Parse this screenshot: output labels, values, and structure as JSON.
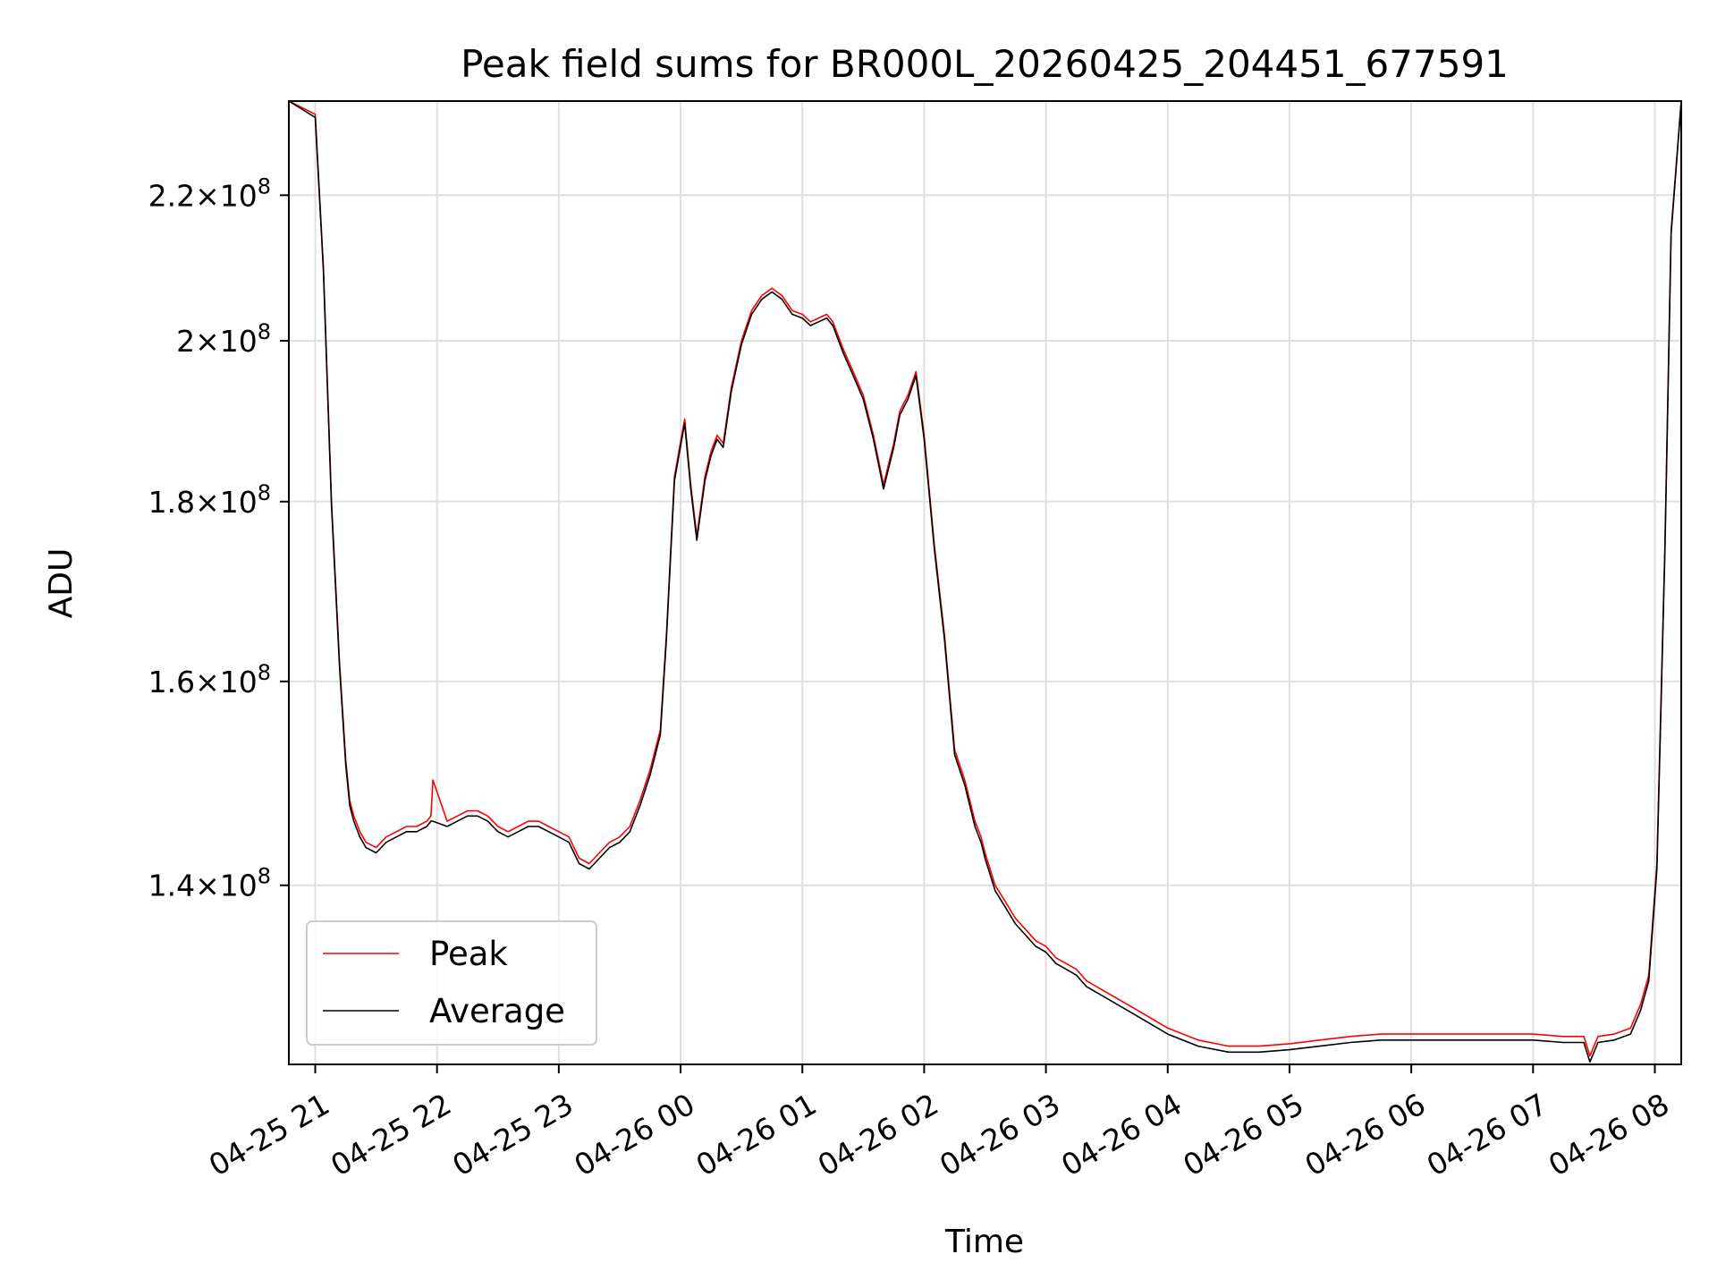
{
  "chart_data": {
    "type": "line",
    "title": "Peak field sums for BR000L_20260425_204451_677591",
    "xlabel": "Time",
    "ylabel": "ADU",
    "y_scale": "log",
    "ylim": [
      124500000,
      234000000
    ],
    "xlim": [
      "2026-04-25 20:47",
      "2026-04-26 08:13"
    ],
    "grid": true,
    "legend_position": "lower-left",
    "x_ticks": [
      "04-25 21",
      "04-25 22",
      "04-25 23",
      "04-26 00",
      "04-26 01",
      "04-26 02",
      "04-26 03",
      "04-26 04",
      "04-26 05",
      "04-26 06",
      "04-26 07",
      "04-26 08"
    ],
    "x_tick_times": [
      "2026-04-25 21:00",
      "2026-04-25 22:00",
      "2026-04-25 23:00",
      "2026-04-26 00:00",
      "2026-04-26 01:00",
      "2026-04-26 02:00",
      "2026-04-26 03:00",
      "2026-04-26 04:00",
      "2026-04-26 05:00",
      "2026-04-26 06:00",
      "2026-04-26 07:00",
      "2026-04-26 08:00"
    ],
    "y_ticks": [
      {
        "value": 140000000,
        "mantissa": "1.4",
        "exp": "8"
      },
      {
        "value": 160000000,
        "mantissa": "1.6",
        "exp": "8"
      },
      {
        "value": 180000000,
        "mantissa": "1.8",
        "exp": "8"
      },
      {
        "value": 200000000,
        "mantissa": "2",
        "exp": "8"
      },
      {
        "value": 220000000,
        "mantissa": "2.2",
        "exp": "8"
      }
    ],
    "series": [
      {
        "name": "Peak",
        "color": "#ff0000",
        "x": [
          "2026-04-25 20:47",
          "2026-04-25 21:00",
          "2026-04-25 21:04",
          "2026-04-25 21:08",
          "2026-04-25 21:12",
          "2026-04-25 21:15",
          "2026-04-25 21:17",
          "2026-04-25 21:19",
          "2026-04-25 21:20",
          "2026-04-25 21:22",
          "2026-04-25 21:25",
          "2026-04-25 21:30",
          "2026-04-25 21:35",
          "2026-04-25 21:40",
          "2026-04-25 21:45",
          "2026-04-25 21:50",
          "2026-04-25 21:55",
          "2026-04-25 21:57",
          "2026-04-25 21:58",
          "2026-04-25 22:05",
          "2026-04-25 22:10",
          "2026-04-25 22:15",
          "2026-04-25 22:20",
          "2026-04-25 22:25",
          "2026-04-25 22:30",
          "2026-04-25 22:35",
          "2026-04-25 22:40",
          "2026-04-25 22:45",
          "2026-04-25 22:50",
          "2026-04-25 22:55",
          "2026-04-25 23:00",
          "2026-04-25 23:05",
          "2026-04-25 23:10",
          "2026-04-25 23:15",
          "2026-04-25 23:20",
          "2026-04-25 23:25",
          "2026-04-25 23:30",
          "2026-04-25 23:35",
          "2026-04-25 23:40",
          "2026-04-25 23:45",
          "2026-04-25 23:50",
          "2026-04-25 23:53",
          "2026-04-25 23:57",
          "2026-04-26 00:02",
          "2026-04-26 00:05",
          "2026-04-26 00:08",
          "2026-04-26 00:12",
          "2026-04-26 00:15",
          "2026-04-26 00:18",
          "2026-04-26 00:21",
          "2026-04-26 00:25",
          "2026-04-26 00:30",
          "2026-04-26 00:35",
          "2026-04-26 00:40",
          "2026-04-26 00:45",
          "2026-04-26 00:50",
          "2026-04-26 00:55",
          "2026-04-26 01:00",
          "2026-04-26 01:04",
          "2026-04-26 01:08",
          "2026-04-26 01:12",
          "2026-04-26 01:15",
          "2026-04-26 01:20",
          "2026-04-26 01:25",
          "2026-04-26 01:30",
          "2026-04-26 01:35",
          "2026-04-26 01:40",
          "2026-04-26 01:45",
          "2026-04-26 01:48",
          "2026-04-26 01:52",
          "2026-04-26 01:56",
          "2026-04-26 02:00",
          "2026-04-26 02:05",
          "2026-04-26 02:10",
          "2026-04-26 02:15",
          "2026-04-26 02:20",
          "2026-04-26 02:25",
          "2026-04-26 02:28",
          "2026-04-26 02:30",
          "2026-04-26 02:35",
          "2026-04-26 02:40",
          "2026-04-26 02:45",
          "2026-04-26 02:50",
          "2026-04-26 02:55",
          "2026-04-26 03:00",
          "2026-04-26 03:05",
          "2026-04-26 03:10",
          "2026-04-26 03:15",
          "2026-04-26 03:20",
          "2026-04-26 03:30",
          "2026-04-26 03:40",
          "2026-04-26 03:50",
          "2026-04-26 04:00",
          "2026-04-26 04:15",
          "2026-04-26 04:30",
          "2026-04-26 04:45",
          "2026-04-26 05:00",
          "2026-04-26 05:15",
          "2026-04-26 05:30",
          "2026-04-26 05:45",
          "2026-04-26 06:00",
          "2026-04-26 06:15",
          "2026-04-26 06:30",
          "2026-04-26 06:45",
          "2026-04-26 07:00",
          "2026-04-26 07:15",
          "2026-04-26 07:25",
          "2026-04-26 07:28",
          "2026-04-26 07:32",
          "2026-04-26 07:40",
          "2026-04-26 07:48",
          "2026-04-26 07:53",
          "2026-04-26 07:57",
          "2026-04-26 08:01",
          "2026-04-26 08:05",
          "2026-04-26 08:08",
          "2026-04-26 08:13"
        ],
        "values": [
          234000000,
          232000000,
          210000000,
          180000000,
          162000000,
          152000000,
          148000000,
          146500000,
          146000000,
          145000000,
          144000000,
          143500000,
          144500000,
          145000000,
          145500000,
          145500000,
          146000000,
          146500000,
          150000000,
          146000000,
          146500000,
          147000000,
          147000000,
          146500000,
          145500000,
          145000000,
          145500000,
          146000000,
          146000000,
          145500000,
          145000000,
          144500000,
          142500000,
          142000000,
          143000000,
          144000000,
          144500000,
          145500000,
          148000000,
          151000000,
          155000000,
          165000000,
          183000000,
          190000000,
          182000000,
          176000000,
          183000000,
          186000000,
          188000000,
          187000000,
          194000000,
          200000000,
          204000000,
          206000000,
          207000000,
          206000000,
          204000000,
          203500000,
          202500000,
          203000000,
          203500000,
          202500000,
          199000000,
          196000000,
          193000000,
          188000000,
          182000000,
          187000000,
          191000000,
          193000000,
          196000000,
          188000000,
          175000000,
          165000000,
          153000000,
          150000000,
          146000000,
          144500000,
          143000000,
          140000000,
          138500000,
          137000000,
          136000000,
          135000000,
          134500000,
          133500000,
          133000000,
          132500000,
          131500000,
          130500000,
          129500000,
          128500000,
          127500000,
          126500000,
          126000000,
          126000000,
          126200000,
          126500000,
          126800000,
          127000000,
          127000000,
          127000000,
          127000000,
          127000000,
          127000000,
          126800000,
          126800000,
          125200000,
          126800000,
          127000000,
          127500000,
          129500000,
          132000000,
          142000000,
          175000000,
          215000000,
          234000000
        ]
      },
      {
        "name": "Average",
        "color": "#000000",
        "x": [
          "2026-04-25 20:47",
          "2026-04-25 21:00",
          "2026-04-25 21:04",
          "2026-04-25 21:08",
          "2026-04-25 21:12",
          "2026-04-25 21:15",
          "2026-04-25 21:17",
          "2026-04-25 21:19",
          "2026-04-25 21:20",
          "2026-04-25 21:22",
          "2026-04-25 21:25",
          "2026-04-25 21:30",
          "2026-04-25 21:35",
          "2026-04-25 21:40",
          "2026-04-25 21:45",
          "2026-04-25 21:50",
          "2026-04-25 21:55",
          "2026-04-25 21:57",
          "2026-04-25 21:58",
          "2026-04-25 22:05",
          "2026-04-25 22:10",
          "2026-04-25 22:15",
          "2026-04-25 22:20",
          "2026-04-25 22:25",
          "2026-04-25 22:30",
          "2026-04-25 22:35",
          "2026-04-25 22:40",
          "2026-04-25 22:45",
          "2026-04-25 22:50",
          "2026-04-25 22:55",
          "2026-04-25 23:00",
          "2026-04-25 23:05",
          "2026-04-25 23:10",
          "2026-04-25 23:15",
          "2026-04-25 23:20",
          "2026-04-25 23:25",
          "2026-04-25 23:30",
          "2026-04-25 23:35",
          "2026-04-25 23:40",
          "2026-04-25 23:45",
          "2026-04-25 23:50",
          "2026-04-25 23:53",
          "2026-04-25 23:57",
          "2026-04-26 00:02",
          "2026-04-26 00:05",
          "2026-04-26 00:08",
          "2026-04-26 00:12",
          "2026-04-26 00:15",
          "2026-04-26 00:18",
          "2026-04-26 00:21",
          "2026-04-26 00:25",
          "2026-04-26 00:30",
          "2026-04-26 00:35",
          "2026-04-26 00:40",
          "2026-04-26 00:45",
          "2026-04-26 00:50",
          "2026-04-26 00:55",
          "2026-04-26 01:00",
          "2026-04-26 01:04",
          "2026-04-26 01:08",
          "2026-04-26 01:12",
          "2026-04-26 01:15",
          "2026-04-26 01:20",
          "2026-04-26 01:25",
          "2026-04-26 01:30",
          "2026-04-26 01:35",
          "2026-04-26 01:40",
          "2026-04-26 01:45",
          "2026-04-26 01:48",
          "2026-04-26 01:52",
          "2026-04-26 01:56",
          "2026-04-26 02:00",
          "2026-04-26 02:05",
          "2026-04-26 02:10",
          "2026-04-26 02:15",
          "2026-04-26 02:20",
          "2026-04-26 02:25",
          "2026-04-26 02:28",
          "2026-04-26 02:30",
          "2026-04-26 02:35",
          "2026-04-26 02:40",
          "2026-04-26 02:45",
          "2026-04-26 02:50",
          "2026-04-26 02:55",
          "2026-04-26 03:00",
          "2026-04-26 03:05",
          "2026-04-26 03:10",
          "2026-04-26 03:15",
          "2026-04-26 03:20",
          "2026-04-26 03:30",
          "2026-04-26 03:40",
          "2026-04-26 03:50",
          "2026-04-26 04:00",
          "2026-04-26 04:15",
          "2026-04-26 04:30",
          "2026-04-26 04:45",
          "2026-04-26 05:00",
          "2026-04-26 05:15",
          "2026-04-26 05:30",
          "2026-04-26 05:45",
          "2026-04-26 06:00",
          "2026-04-26 06:15",
          "2026-04-26 06:30",
          "2026-04-26 06:45",
          "2026-04-26 07:00",
          "2026-04-26 07:15",
          "2026-04-26 07:25",
          "2026-04-26 07:28",
          "2026-04-26 07:32",
          "2026-04-26 07:40",
          "2026-04-26 07:48",
          "2026-04-26 07:53",
          "2026-04-26 07:57",
          "2026-04-26 08:01",
          "2026-04-26 08:05",
          "2026-04-26 08:08",
          "2026-04-26 08:13"
        ],
        "values": [
          234000000,
          231500000,
          209500000,
          179500000,
          161500000,
          151500000,
          147500000,
          146000000,
          145500000,
          144500000,
          143500000,
          143000000,
          144000000,
          144500000,
          145000000,
          145000000,
          145500000,
          146000000,
          146000000,
          145500000,
          146000000,
          146500000,
          146500000,
          146000000,
          145000000,
          144500000,
          145000000,
          145500000,
          145500000,
          145000000,
          144500000,
          144000000,
          142000000,
          141500000,
          142500000,
          143500000,
          144000000,
          145000000,
          147500000,
          150500000,
          154500000,
          164500000,
          182500000,
          189500000,
          181500000,
          175500000,
          182500000,
          185500000,
          187500000,
          186500000,
          193500000,
          199500000,
          203500000,
          205500000,
          206500000,
          205500000,
          203500000,
          203000000,
          202000000,
          202500000,
          203000000,
          202000000,
          198500000,
          195500000,
          192500000,
          187500000,
          181500000,
          186500000,
          190500000,
          192500000,
          195500000,
          187500000,
          174500000,
          164500000,
          152500000,
          149500000,
          145500000,
          144000000,
          142500000,
          139500000,
          138000000,
          136500000,
          135500000,
          134500000,
          134000000,
          133000000,
          132500000,
          132000000,
          131000000,
          130000000,
          129000000,
          128000000,
          127000000,
          126000000,
          125500000,
          125500000,
          125700000,
          126000000,
          126300000,
          126500000,
          126500000,
          126500000,
          126500000,
          126500000,
          126500000,
          126300000,
          126300000,
          124700000,
          126300000,
          126500000,
          127000000,
          129000000,
          131500000,
          141500000,
          174500000,
          214500000,
          234000000
        ]
      }
    ]
  }
}
